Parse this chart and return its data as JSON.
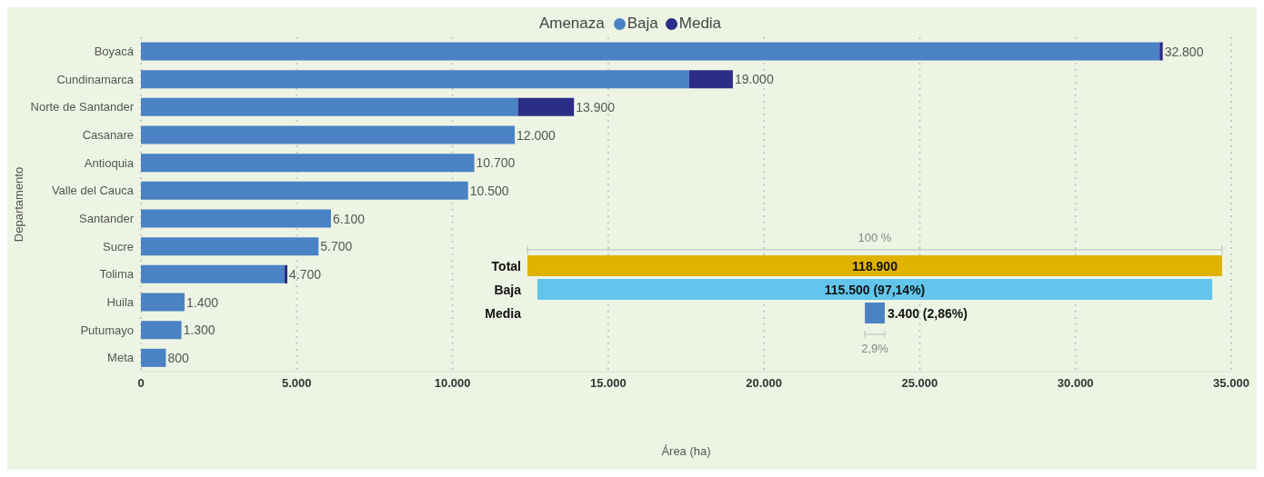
{
  "chart_data": [
    {
      "type": "bar",
      "orientation": "horizontal",
      "stacked": true,
      "xlabel": "Área (ha)",
      "ylabel": "Departamento",
      "legend_title": "Amenaza",
      "legend": "top",
      "categories": [
        "Boyacá",
        "Cundinamarca",
        "Norte de Santander",
        "Casanare",
        "Antioquia",
        "Valle del Cauca",
        "Santander",
        "Sucre",
        "Tolima",
        "Huila",
        "Putumayo",
        "Meta"
      ],
      "series": [
        {
          "name": "Baja",
          "color": "#4a82c3",
          "values": [
            32700,
            17600,
            12100,
            12000,
            10700,
            10500,
            6100,
            5700,
            4600,
            1400,
            1300,
            800
          ]
        },
        {
          "name": "Media",
          "color": "#2b2d86",
          "values": [
            100,
            1400,
            1800,
            0,
            0,
            0,
            0,
            0,
            100,
            0,
            0,
            0
          ]
        }
      ],
      "totals": [
        "32.800",
        "19.000",
        "13.900",
        "12.000",
        "10.700",
        "10.500",
        "6.100",
        "5.700",
        "4.700",
        "1.400",
        "1.300",
        "800"
      ],
      "xlim": [
        0,
        35000
      ],
      "xticks": [
        0,
        {
          "value": 5000,
          "label": "5.000"
        },
        {
          "value": 10000,
          "label": "10.000"
        },
        {
          "value": 15000,
          "label": "15.000"
        },
        {
          "value": 20000,
          "label": "20.000"
        },
        {
          "value": 25000,
          "label": "25.000"
        },
        {
          "value": 30000,
          "label": "30.000"
        },
        {
          "value": 35000,
          "label": "35.000"
        }
      ],
      "grid": "x"
    },
    {
      "type": "other",
      "categories": [
        "Total",
        "Baja",
        "Media"
      ],
      "values": [
        118900,
        115500,
        3400
      ],
      "colors": [
        "#dfb300",
        "#63c5ec",
        "#4a82c3"
      ],
      "value_labels": [
        "118.900",
        "115.500 (97,14%)",
        "3.400 (2,86%)"
      ],
      "annotations": [
        "100 %",
        "2,9%"
      ]
    }
  ]
}
